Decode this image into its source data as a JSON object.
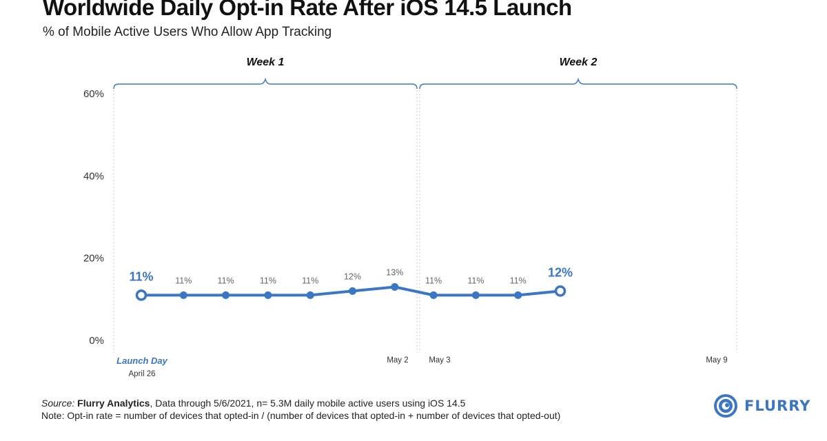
{
  "title": "Worldwide Daily Opt-in Rate After iOS 14.5 Launch",
  "subtitle": "% of Mobile Active Users Who Allow App Tracking",
  "colors": {
    "line": "#3a76c4",
    "bracket": "#3a76c4",
    "text": "#111111",
    "muted": "#666666",
    "divider": "#c8c8c8"
  },
  "chart_data": {
    "type": "line",
    "ylim": [
      0,
      60
    ],
    "yticks": [
      "0%",
      "20%",
      "40%",
      "60%"
    ],
    "ytick_values": [
      0,
      20,
      40,
      60
    ],
    "x_range": [
      0,
      13
    ],
    "series": [
      {
        "values": [
          11,
          11,
          11,
          11,
          11,
          12,
          13,
          11,
          11,
          11,
          12
        ],
        "x": [
          0,
          1,
          2,
          3,
          4,
          5,
          6,
          7,
          8,
          9,
          10
        ],
        "labels": [
          "11%",
          "11%",
          "11%",
          "11%",
          "11%",
          "12%",
          "13%",
          "11%",
          "11%",
          "11%",
          "12%"
        ],
        "highlight_indices": [
          0,
          10
        ]
      }
    ],
    "x_labels": [
      {
        "x": 0,
        "text": "Launch Day",
        "sub": "April 26",
        "highlight": true
      },
      {
        "x": 6,
        "text": "May 2"
      },
      {
        "x": 7,
        "text": "May 3"
      },
      {
        "x": 13,
        "text": "May 9"
      }
    ],
    "groups": [
      {
        "label": "Week 1",
        "start": 0,
        "end": 6
      },
      {
        "label": "Week 2",
        "start": 7,
        "end": 13
      }
    ],
    "grid": false,
    "legend": "none"
  },
  "footer": {
    "source_label": "Source:",
    "source_name": "Flurry Analytics",
    "source_rest": ", Data through 5/6/2021, n= 5.3M daily mobile active users using iOS 14.5",
    "note": "Note: Opt-in rate = number of devices that opted-in / (number of devices that opted-in + number of devices that opted-out)"
  },
  "brand": {
    "name": "FLURRY",
    "icon": "flurry-logo-icon"
  }
}
